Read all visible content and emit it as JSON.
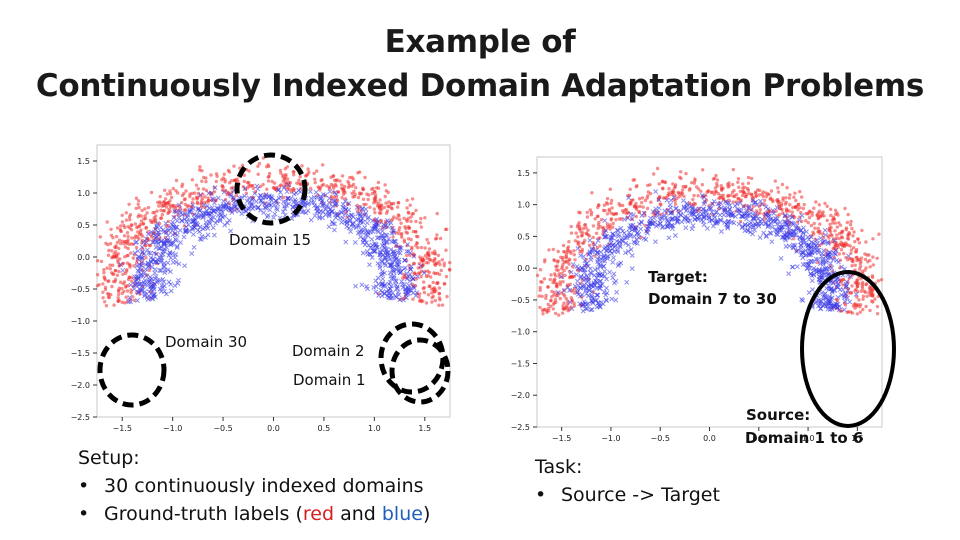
{
  "title": {
    "line1": "Example of",
    "line2": "Continuously Indexed Domain Adaptation Problems"
  },
  "colors": {
    "red_class": "#f03030",
    "blue_class": "#3a3ae8",
    "circle": "#000000"
  },
  "left_panel": {
    "annotations": {
      "domain_15": "Domain 15",
      "domain_30": "Domain 30",
      "domain_2": "Domain 2",
      "domain_1": "Domain 1"
    },
    "setup": {
      "heading": "Setup:",
      "bullet_1": "30 continuously indexed domains",
      "bullet_2_prefix": "Ground-truth labels (",
      "bullet_2_red": "red",
      "bullet_2_and": " and ",
      "bullet_2_blue": "blue",
      "bullet_2_suffix": ")"
    }
  },
  "right_panel": {
    "annotations": {
      "target_line1": "Target:",
      "target_line2": "Domain 7 to 30",
      "source_line1": "Source:",
      "source_line2": "Domain 1 to 6"
    },
    "task": {
      "heading": "Task:",
      "bullet_1": "Source -> Target"
    }
  },
  "chart_data": [
    {
      "type": "scatter",
      "title": "",
      "xlim": [
        -1.75,
        1.75
      ],
      "ylim": [
        -2.5,
        1.75
      ],
      "x_ticks": [
        "−1.5",
        "−1.0",
        "−0.5",
        "0.0",
        "0.5",
        "1.0",
        "1.5"
      ],
      "x_tick_values": [
        -1.5,
        -1.0,
        -0.5,
        0.0,
        0.5,
        1.0,
        1.5
      ],
      "y_ticks": [
        "1.5",
        "1.0",
        "0.5",
        "0.0",
        "−0.5",
        "−1.0",
        "−1.5",
        "−2.0",
        "−2.5"
      ],
      "y_tick_values": [
        1.5,
        1.0,
        0.5,
        0.0,
        -0.5,
        -1.0,
        -1.5,
        -2.0,
        -2.5
      ],
      "series": [
        {
          "marker": "dot",
          "color": "#f03030",
          "shape": "outer arc, radius ≈ 1.55, centred at (0, -0.35)"
        },
        {
          "marker": "x",
          "color": "#3a3ae8",
          "shape": "inner arc, radius ≈ 1.25, centred at (0, -0.35)"
        }
      ],
      "highlighted_domains": [
        {
          "name": "Domain 15",
          "x": 0.0,
          "y": 1.05
        },
        {
          "name": "Domain 30",
          "x": -1.45,
          "y": -1.75
        },
        {
          "name": "Domain 2",
          "x": 1.35,
          "y": -1.6
        },
        {
          "name": "Domain 1",
          "x": 1.5,
          "y": -1.75
        }
      ]
    },
    {
      "type": "scatter",
      "title": "",
      "xlim": [
        -1.75,
        1.75
      ],
      "ylim": [
        -2.5,
        1.75
      ],
      "x_ticks": [
        "−1.5",
        "−1.0",
        "−0.5",
        "0.0",
        "0.5",
        "1.0",
        "1.5"
      ],
      "x_tick_values": [
        -1.5,
        -1.0,
        -0.5,
        0.0,
        0.5,
        1.0,
        1.5
      ],
      "y_ticks": [
        "1.5",
        "1.0",
        "0.5",
        "0.0",
        "−0.5",
        "−1.0",
        "−1.5",
        "−2.0",
        "−2.5"
      ],
      "y_tick_values": [
        1.5,
        1.0,
        0.5,
        0.0,
        -0.5,
        -1.0,
        -1.5,
        -2.0,
        -2.5
      ],
      "series": [
        {
          "marker": "dot",
          "color": "#f03030",
          "shape": "outer arc, radius ≈ 1.55, centred at (0, -0.35)"
        },
        {
          "marker": "x",
          "color": "#3a3ae8",
          "shape": "inner arc, radius ≈ 1.25, centred at (0, -0.35)"
        }
      ],
      "highlighted_domains": [
        {
          "name": "Source: Domain 1 to 6",
          "x_range": [
            1.1,
            1.75
          ],
          "y_range": [
            -2.5,
            -0.2
          ]
        }
      ]
    }
  ]
}
